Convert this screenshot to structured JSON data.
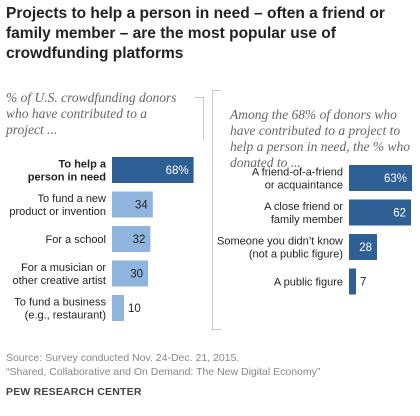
{
  "title": "Projects to help a person in need – often a friend or family member – are the most popular use of crowdfunding platforms",
  "source_line1": "Source: Survey conducted Nov. 24-Dec. 21, 2015.",
  "source_line2": "“Shared, Collaborative and On Demand: The New Digital Economy”",
  "credit": "PEW RESEARCH CENTER",
  "colors": {
    "dark": "#2e5f95",
    "light": "#8fb5de",
    "text_dark": "#ffffff",
    "text_light": "#231f20"
  },
  "chart_data": [
    {
      "type": "bar",
      "subtitle": "% of U.S. crowdfunding donors who have contributed to a project ...",
      "categories": [
        "To help a person in need",
        "To fund a new product or invention",
        "For a school",
        "For a musician or other creative artist",
        "To fund a business (e.g., restaurant)"
      ],
      "category_lines": [
        [
          "To help a",
          "person in need"
        ],
        [
          "To fund a new",
          "product or invention"
        ],
        [
          "For a school"
        ],
        [
          "For a musician or",
          "other creative artist"
        ],
        [
          "To fund a business",
          "(e.g., restaurant)"
        ]
      ],
      "values": [
        68,
        34,
        32,
        30,
        10
      ],
      "labels": [
        "68%",
        "34",
        "32",
        "30",
        "10"
      ],
      "highlight": [
        true,
        false,
        false,
        false,
        false
      ]
    },
    {
      "type": "bar",
      "subtitle": "Among the 68% of donors who have contributed to a project to help a person in need, the % who donated to ...",
      "categories": [
        "A friend-of-a-friend or acquaintance",
        "A close friend or family member",
        "Someone you didn't know (not a public figure)",
        "A public figure"
      ],
      "category_lines": [
        [
          "A friend-of-a-friend",
          "or acquaintance"
        ],
        [
          "A close friend or",
          "family member"
        ],
        [
          "Someone you didn’t know",
          "(not a public figure)"
        ],
        [
          "A public figure"
        ]
      ],
      "values": [
        63,
        62,
        28,
        7
      ],
      "labels": [
        "63%",
        "62",
        "28",
        "7"
      ]
    }
  ]
}
